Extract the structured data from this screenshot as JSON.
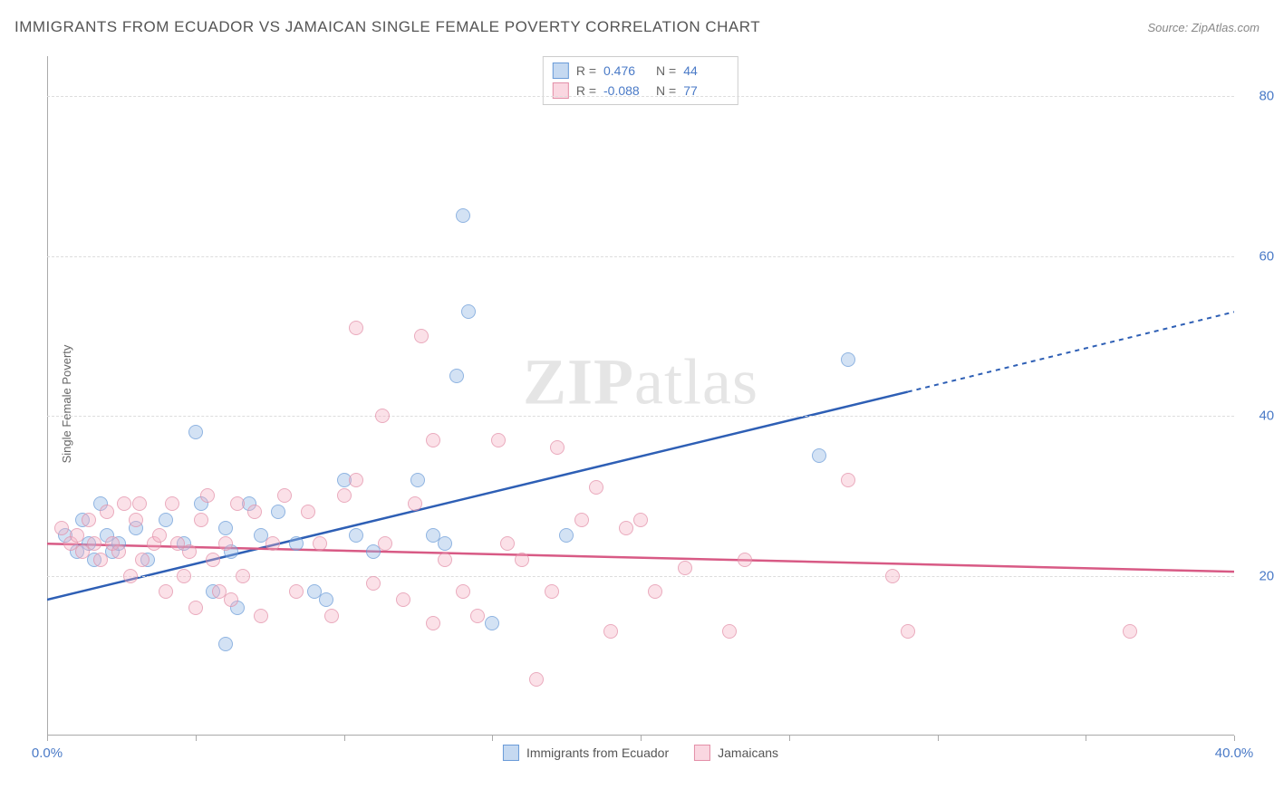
{
  "title": "IMMIGRANTS FROM ECUADOR VS JAMAICAN SINGLE FEMALE POVERTY CORRELATION CHART",
  "source": "Source: ZipAtlas.com",
  "watermark_zip": "ZIP",
  "watermark_atlas": "atlas",
  "y_axis_label": "Single Female Poverty",
  "x_range": [
    0,
    40
  ],
  "y_range": [
    0,
    85
  ],
  "y_ticks": [
    20,
    40,
    60,
    80
  ],
  "y_tick_labels": [
    "20.0%",
    "40.0%",
    "60.0%",
    "80.0%"
  ],
  "x_ticks": [
    0,
    5,
    10,
    15,
    20,
    25,
    30,
    35,
    40
  ],
  "x_tick_labels_shown": {
    "0": "0.0%",
    "40": "40.0%"
  },
  "grid_color": "#dddddd",
  "axis_color": "#aaaaaa",
  "tick_label_color": "#4a7ac7",
  "background_color": "#ffffff",
  "series": [
    {
      "id": "ecuador",
      "label": "Immigrants from Ecuador",
      "color_fill": "rgba(150,185,230,0.55)",
      "color_stroke": "#6a9bd8",
      "trend_color": "#2e5fb5",
      "R": "0.476",
      "N": "44",
      "trend": {
        "x1": 0,
        "y1": 17,
        "x2": 29,
        "y2": 43,
        "x_dash_to": 40,
        "y_dash_to": 53
      },
      "points": [
        [
          0.6,
          25
        ],
        [
          1.0,
          23
        ],
        [
          1.2,
          27
        ],
        [
          1.4,
          24
        ],
        [
          1.6,
          22
        ],
        [
          1.8,
          29
        ],
        [
          2.0,
          25
        ],
        [
          2.2,
          23
        ],
        [
          2.4,
          24
        ],
        [
          3.0,
          26
        ],
        [
          3.4,
          22
        ],
        [
          4.0,
          27
        ],
        [
          4.6,
          24
        ],
        [
          5.0,
          38
        ],
        [
          5.2,
          29
        ],
        [
          5.6,
          18
        ],
        [
          6.0,
          26
        ],
        [
          6.2,
          23
        ],
        [
          6.4,
          16
        ],
        [
          6.8,
          29
        ],
        [
          6.0,
          11.5
        ],
        [
          7.2,
          25
        ],
        [
          7.8,
          28
        ],
        [
          8.4,
          24
        ],
        [
          9.0,
          18
        ],
        [
          9.4,
          17
        ],
        [
          10.0,
          32
        ],
        [
          10.4,
          25
        ],
        [
          11.0,
          23
        ],
        [
          12.5,
          32
        ],
        [
          13.0,
          25
        ],
        [
          13.4,
          24
        ],
        [
          13.8,
          45
        ],
        [
          14.0,
          65
        ],
        [
          14.2,
          53
        ],
        [
          15.0,
          14
        ],
        [
          17.5,
          25
        ],
        [
          26.0,
          35
        ],
        [
          27.0,
          47
        ]
      ]
    },
    {
      "id": "jamaican",
      "label": "Jamaicans",
      "color_fill": "rgba(245,175,195,0.5)",
      "color_stroke": "#e38fa8",
      "trend_color": "#d85a85",
      "R": "-0.088",
      "N": "77",
      "trend": {
        "x1": 0,
        "y1": 24,
        "x2": 40,
        "y2": 20.5
      },
      "points": [
        [
          0.5,
          26
        ],
        [
          0.8,
          24
        ],
        [
          1.0,
          25
        ],
        [
          1.2,
          23
        ],
        [
          1.4,
          27
        ],
        [
          1.6,
          24
        ],
        [
          1.8,
          22
        ],
        [
          2.0,
          28
        ],
        [
          2.2,
          24
        ],
        [
          2.4,
          23
        ],
        [
          2.6,
          29
        ],
        [
          2.8,
          20
        ],
        [
          3.0,
          27
        ],
        [
          3.1,
          29
        ],
        [
          3.2,
          22
        ],
        [
          3.6,
          24
        ],
        [
          3.8,
          25
        ],
        [
          4.0,
          18
        ],
        [
          4.2,
          29
        ],
        [
          4.4,
          24
        ],
        [
          4.6,
          20
        ],
        [
          4.8,
          23
        ],
        [
          5.0,
          16
        ],
        [
          5.2,
          27
        ],
        [
          5.4,
          30
        ],
        [
          5.6,
          22
        ],
        [
          5.8,
          18
        ],
        [
          6.0,
          24
        ],
        [
          6.2,
          17
        ],
        [
          6.4,
          29
        ],
        [
          6.6,
          20
        ],
        [
          7.0,
          28
        ],
        [
          7.2,
          15
        ],
        [
          7.6,
          24
        ],
        [
          8.0,
          30
        ],
        [
          8.4,
          18
        ],
        [
          8.8,
          28
        ],
        [
          9.2,
          24
        ],
        [
          9.6,
          15
        ],
        [
          10.0,
          30
        ],
        [
          10.4,
          32
        ],
        [
          10.4,
          51
        ],
        [
          11.0,
          19
        ],
        [
          11.4,
          24
        ],
        [
          11.3,
          40
        ],
        [
          12.0,
          17
        ],
        [
          12.4,
          29
        ],
        [
          12.6,
          50
        ],
        [
          13.0,
          14
        ],
        [
          13.0,
          37
        ],
        [
          13.4,
          22
        ],
        [
          14.0,
          18
        ],
        [
          14.5,
          15
        ],
        [
          15.2,
          37
        ],
        [
          15.5,
          24
        ],
        [
          16.0,
          22
        ],
        [
          16.5,
          7
        ],
        [
          17.0,
          18
        ],
        [
          17.2,
          36
        ],
        [
          18.0,
          27
        ],
        [
          18.5,
          31
        ],
        [
          19.0,
          13
        ],
        [
          19.5,
          26
        ],
        [
          20.0,
          27
        ],
        [
          20.5,
          18
        ],
        [
          21.5,
          21
        ],
        [
          23.0,
          13
        ],
        [
          23.5,
          22
        ],
        [
          27.0,
          32
        ],
        [
          28.5,
          20
        ],
        [
          29.0,
          13
        ],
        [
          36.5,
          13
        ]
      ]
    }
  ],
  "legend_top_label_R": "R =",
  "legend_top_label_N": "N ="
}
